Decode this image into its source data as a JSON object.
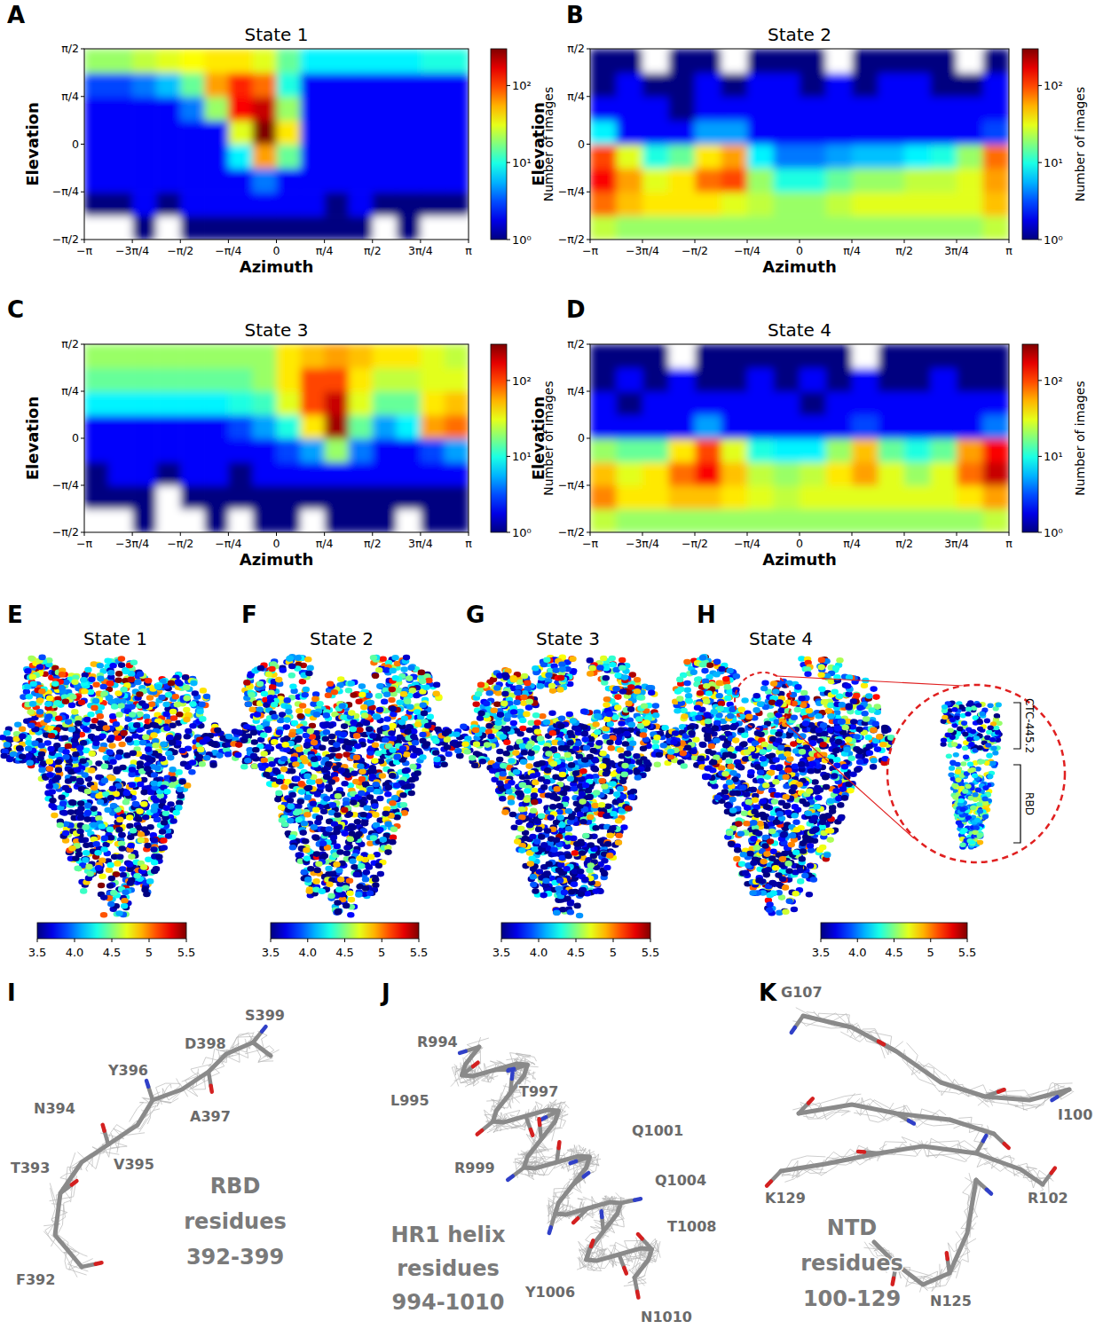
{
  "chart_data": [
    {
      "type": "heatmap",
      "panel": "A",
      "title": "State 1",
      "x_label": "Azimuth",
      "y_label": "Elevation",
      "xlim": [
        -3.1416,
        3.1416
      ],
      "ylim": [
        -1.5708,
        1.5708
      ],
      "xticks": [
        {
          "value": -3.1416,
          "label": "−π"
        },
        {
          "value": -2.3562,
          "label": "−3π/4"
        },
        {
          "value": -1.5708,
          "label": "−π/2"
        },
        {
          "value": -0.7854,
          "label": "−π/4"
        },
        0,
        {
          "value": 0.7854,
          "label": "π/4"
        },
        {
          "value": 1.5708,
          "label": "π/2"
        },
        {
          "value": 2.3562,
          "label": "3π/4"
        },
        {
          "value": 3.1416,
          "label": "π"
        }
      ],
      "yticks": [
        {
          "value": -1.5708,
          "label": "−π/2"
        },
        {
          "value": -0.7854,
          "label": "−π/4"
        },
        0,
        {
          "value": 0.7854,
          "label": "π/4"
        },
        {
          "value": 1.5708,
          "label": "π/2"
        }
      ],
      "x_edges": [
        -3.1416,
        -2.7489,
        -2.3562,
        -1.9635,
        -1.5708,
        -1.1781,
        -0.7854,
        -0.3927,
        0,
        0.3927,
        0.7854,
        1.1781,
        1.5708,
        1.9635,
        2.3562,
        2.7489,
        3.1416
      ],
      "y_edges": [
        -1.5708,
        -1.1781,
        -0.7854,
        -0.3927,
        0,
        0.3927,
        0.7854,
        1.1781,
        1.5708
      ],
      "cells": [
        [
          0,
          0,
          1,
          0,
          1,
          1,
          1,
          1,
          1,
          1,
          1,
          1,
          0,
          1,
          0,
          0
        ],
        [
          1,
          1,
          2,
          1,
          2,
          2,
          2,
          2,
          2,
          2,
          1,
          2,
          1,
          1,
          1,
          1
        ],
        [
          2,
          2,
          2,
          2,
          2,
          2,
          2,
          4,
          2,
          2,
          2,
          2,
          2,
          2,
          2,
          2
        ],
        [
          2,
          2,
          2,
          2,
          2,
          2,
          8,
          60,
          15,
          2,
          2,
          2,
          2,
          2,
          2,
          2
        ],
        [
          2,
          2,
          2,
          2,
          2,
          2,
          30,
          300,
          40,
          2,
          2,
          2,
          2,
          2,
          2,
          2
        ],
        [
          2,
          2,
          2,
          2,
          4,
          20,
          150,
          200,
          20,
          2,
          2,
          2,
          2,
          2,
          2,
          2
        ],
        [
          3,
          3,
          4,
          6,
          15,
          60,
          120,
          80,
          10,
          2,
          2,
          2,
          2,
          2,
          2,
          2
        ],
        [
          20,
          20,
          25,
          30,
          35,
          40,
          40,
          30,
          15,
          8,
          8,
          8,
          8,
          8,
          10,
          10
        ]
      ],
      "colorbar": {
        "label": "Number of images",
        "log": true,
        "range": [
          1,
          300
        ],
        "ticks": [
          {
            "value": 1,
            "label": "10⁰"
          },
          {
            "value": 10,
            "label": "10¹"
          },
          {
            "value": 100,
            "label": "10²"
          }
        ]
      }
    },
    {
      "type": "heatmap",
      "panel": "B",
      "title": "State 2",
      "x_label": "Azimuth",
      "y_label": "Elevation",
      "xlim": [
        -3.1416,
        3.1416
      ],
      "ylim": [
        -1.5708,
        1.5708
      ],
      "xticks": [
        {
          "value": -3.1416,
          "label": "−π"
        },
        {
          "value": -2.3562,
          "label": "−3π/4"
        },
        {
          "value": -1.5708,
          "label": "−π/2"
        },
        {
          "value": -0.7854,
          "label": "−π/4"
        },
        0,
        {
          "value": 0.7854,
          "label": "π/4"
        },
        {
          "value": 1.5708,
          "label": "π/2"
        },
        {
          "value": 2.3562,
          "label": "3π/4"
        },
        {
          "value": 3.1416,
          "label": "π"
        }
      ],
      "yticks": [
        {
          "value": -1.5708,
          "label": "−π/2"
        },
        {
          "value": -0.7854,
          "label": "−π/4"
        },
        0,
        {
          "value": 0.7854,
          "label": "π/4"
        },
        {
          "value": 1.5708,
          "label": "π/2"
        }
      ],
      "x_edges": [
        -3.1416,
        -2.7489,
        -2.3562,
        -1.9635,
        -1.5708,
        -1.1781,
        -0.7854,
        -0.3927,
        0,
        0.3927,
        0.7854,
        1.1781,
        1.5708,
        1.9635,
        2.3562,
        2.7489,
        3.1416
      ],
      "y_edges": [
        -1.5708,
        -1.1781,
        -0.7854,
        -0.3927,
        0,
        0.3927,
        0.7854,
        1.1781,
        1.5708
      ],
      "cells": [
        [
          25,
          20,
          20,
          20,
          20,
          20,
          20,
          20,
          20,
          20,
          20,
          20,
          20,
          20,
          20,
          25
        ],
        [
          80,
          50,
          40,
          40,
          40,
          30,
          25,
          20,
          20,
          25,
          30,
          30,
          30,
          30,
          30,
          50
        ],
        [
          150,
          60,
          30,
          40,
          80,
          100,
          20,
          10,
          10,
          15,
          20,
          20,
          25,
          25,
          30,
          60
        ],
        [
          100,
          30,
          10,
          15,
          40,
          60,
          8,
          4,
          4,
          5,
          6,
          6,
          8,
          10,
          20,
          80
        ],
        [
          8,
          2,
          2,
          2,
          5,
          5,
          2,
          2,
          2,
          2,
          2,
          2,
          2,
          2,
          2,
          3
        ],
        [
          2,
          2,
          2,
          1,
          2,
          2,
          2,
          2,
          2,
          2,
          2,
          2,
          2,
          2,
          2,
          2
        ],
        [
          1,
          2,
          1,
          1,
          2,
          1,
          2,
          2,
          1,
          2,
          1,
          2,
          2,
          1,
          1,
          2
        ],
        [
          1,
          1,
          0,
          1,
          1,
          0,
          1,
          1,
          1,
          0,
          1,
          1,
          1,
          1,
          0,
          1
        ]
      ],
      "colorbar": {
        "label": "Number of images",
        "log": true,
        "range": [
          1,
          300
        ],
        "ticks": [
          {
            "value": 1,
            "label": "10⁰"
          },
          {
            "value": 10,
            "label": "10¹"
          },
          {
            "value": 100,
            "label": "10²"
          }
        ]
      }
    },
    {
      "type": "heatmap",
      "panel": "C",
      "title": "State 3",
      "x_label": "Azimuth",
      "y_label": "Elevation",
      "xlim": [
        -3.1416,
        3.1416
      ],
      "ylim": [
        -1.5708,
        1.5708
      ],
      "xticks": [
        {
          "value": -3.1416,
          "label": "−π"
        },
        {
          "value": -2.3562,
          "label": "−3π/4"
        },
        {
          "value": -1.5708,
          "label": "−π/2"
        },
        {
          "value": -0.7854,
          "label": "−π/4"
        },
        0,
        {
          "value": 0.7854,
          "label": "π/4"
        },
        {
          "value": 1.5708,
          "label": "π/2"
        },
        {
          "value": 2.3562,
          "label": "3π/4"
        },
        {
          "value": 3.1416,
          "label": "π"
        }
      ],
      "yticks": [
        {
          "value": -1.5708,
          "label": "−π/2"
        },
        {
          "value": -0.7854,
          "label": "−π/4"
        },
        0,
        {
          "value": 0.7854,
          "label": "π/4"
        },
        {
          "value": 1.5708,
          "label": "π/2"
        }
      ],
      "x_edges": [
        -3.1416,
        -2.7489,
        -2.3562,
        -1.9635,
        -1.5708,
        -1.1781,
        -0.7854,
        -0.3927,
        0,
        0.3927,
        0.7854,
        1.1781,
        1.5708,
        1.9635,
        2.3562,
        2.7489,
        3.1416
      ],
      "y_edges": [
        -1.5708,
        -1.1781,
        -0.7854,
        -0.3927,
        0,
        0.3927,
        0.7854,
        1.1781,
        1.5708
      ],
      "cells": [
        [
          0,
          0,
          1,
          0,
          0,
          1,
          0,
          1,
          1,
          0,
          1,
          1,
          1,
          0,
          1,
          1
        ],
        [
          1,
          1,
          1,
          0,
          1,
          1,
          1,
          1,
          1,
          1,
          1,
          1,
          1,
          1,
          1,
          1
        ],
        [
          1,
          2,
          2,
          1,
          2,
          2,
          1,
          2,
          2,
          2,
          2,
          2,
          2,
          2,
          2,
          2
        ],
        [
          2,
          2,
          2,
          2,
          2,
          2,
          2,
          2,
          3,
          5,
          20,
          4,
          2,
          2,
          3,
          5
        ],
        [
          2,
          2,
          2,
          2,
          2,
          2,
          3,
          5,
          10,
          40,
          250,
          15,
          5,
          8,
          60,
          80
        ],
        [
          8,
          8,
          8,
          8,
          8,
          8,
          10,
          12,
          30,
          100,
          200,
          30,
          15,
          15,
          40,
          50
        ],
        [
          15,
          15,
          15,
          15,
          15,
          15,
          15,
          20,
          40,
          100,
          100,
          40,
          25,
          25,
          30,
          30
        ],
        [
          20,
          20,
          20,
          20,
          20,
          20,
          20,
          20,
          40,
          50,
          60,
          50,
          40,
          40,
          30,
          25
        ]
      ],
      "colorbar": {
        "label": "Number of images",
        "log": true,
        "range": [
          1,
          300
        ],
        "ticks": [
          {
            "value": 1,
            "label": "10⁰"
          },
          {
            "value": 10,
            "label": "10¹"
          },
          {
            "value": 100,
            "label": "10²"
          }
        ]
      }
    },
    {
      "type": "heatmap",
      "panel": "D",
      "title": "State 4",
      "x_label": "Azimuth",
      "y_label": "Elevation",
      "xlim": [
        -3.1416,
        3.1416
      ],
      "ylim": [
        -1.5708,
        1.5708
      ],
      "xticks": [
        {
          "value": -3.1416,
          "label": "−π"
        },
        {
          "value": -2.3562,
          "label": "−3π/4"
        },
        {
          "value": -1.5708,
          "label": "−π/2"
        },
        {
          "value": -0.7854,
          "label": "−π/4"
        },
        0,
        {
          "value": 0.7854,
          "label": "π/4"
        },
        {
          "value": 1.5708,
          "label": "π/2"
        },
        {
          "value": 2.3562,
          "label": "3π/4"
        },
        {
          "value": 3.1416,
          "label": "π"
        }
      ],
      "yticks": [
        {
          "value": -1.5708,
          "label": "−π/2"
        },
        {
          "value": -0.7854,
          "label": "−π/4"
        },
        0,
        {
          "value": 0.7854,
          "label": "π/4"
        },
        {
          "value": 1.5708,
          "label": "π/2"
        }
      ],
      "x_edges": [
        -3.1416,
        -2.7489,
        -2.3562,
        -1.9635,
        -1.5708,
        -1.1781,
        -0.7854,
        -0.3927,
        0,
        0.3927,
        0.7854,
        1.1781,
        1.5708,
        1.9635,
        2.3562,
        2.7489,
        3.1416
      ],
      "y_edges": [
        -1.5708,
        -1.1781,
        -0.7854,
        -0.3927,
        0,
        0.3927,
        0.7854,
        1.1781,
        1.5708
      ],
      "cells": [
        [
          25,
          20,
          20,
          20,
          20,
          20,
          20,
          20,
          20,
          20,
          20,
          20,
          20,
          20,
          20,
          25
        ],
        [
          70,
          40,
          40,
          50,
          50,
          40,
          30,
          25,
          30,
          30,
          30,
          30,
          30,
          30,
          40,
          60
        ],
        [
          50,
          30,
          40,
          80,
          150,
          50,
          25,
          20,
          25,
          40,
          60,
          30,
          20,
          30,
          80,
          200
        ],
        [
          20,
          15,
          15,
          40,
          100,
          30,
          10,
          8,
          8,
          20,
          50,
          15,
          10,
          15,
          60,
          150
        ],
        [
          2,
          2,
          2,
          2,
          5,
          2,
          2,
          2,
          2,
          2,
          3,
          2,
          2,
          2,
          2,
          4
        ],
        [
          2,
          1,
          2,
          2,
          2,
          2,
          2,
          2,
          1,
          2,
          2,
          2,
          2,
          2,
          2,
          2
        ],
        [
          1,
          2,
          1,
          2,
          1,
          1,
          2,
          1,
          2,
          1,
          2,
          1,
          1,
          2,
          1,
          1
        ],
        [
          1,
          1,
          1,
          0,
          1,
          1,
          1,
          1,
          1,
          1,
          0,
          1,
          1,
          1,
          1,
          1
        ]
      ],
      "colorbar": {
        "label": "Number of images",
        "log": true,
        "range": [
          1,
          300
        ],
        "ticks": [
          {
            "value": 1,
            "label": "10⁰"
          },
          {
            "value": 10,
            "label": "10¹"
          },
          {
            "value": 100,
            "label": "10²"
          }
        ]
      }
    }
  ],
  "density_maps": [
    {
      "panel": "E",
      "title": "State 1",
      "colorbar": {
        "range": [
          3.5,
          5.5
        ],
        "ticks": [
          3.5,
          {
            "value": 4,
            "label": "4.0"
          },
          4.5,
          5,
          5.5
        ]
      }
    },
    {
      "panel": "F",
      "title": "State 2",
      "colorbar": {
        "range": [
          3.5,
          5.5
        ],
        "ticks": [
          3.5,
          {
            "value": 4,
            "label": "4.0"
          },
          4.5,
          5,
          5.5
        ]
      }
    },
    {
      "panel": "G",
      "title": "State 3",
      "colorbar": {
        "range": [
          3.5,
          5.5
        ],
        "ticks": [
          3.5,
          {
            "value": 4,
            "label": "4.0"
          },
          4.5,
          5,
          5.5
        ]
      }
    },
    {
      "panel": "H",
      "title": "State 4",
      "colorbar": {
        "range": [
          3.5,
          5.5
        ],
        "ticks": [
          3.5,
          {
            "value": 4,
            "label": "4.0"
          },
          4.5,
          5,
          5.5
        ]
      },
      "inset_labels": [
        "CTC-445.2",
        "RBD"
      ]
    }
  ],
  "models": [
    {
      "panel": "I",
      "residue_labels": [
        "F392",
        "T393",
        "N394",
        "V395",
        "Y396",
        "A397",
        "D398",
        "S399"
      ],
      "caption": [
        "RBD",
        "residues",
        "392-399"
      ]
    },
    {
      "panel": "J",
      "residue_labels": [
        "R994",
        "T997",
        "L995",
        "Q1001",
        "R999",
        "Q1004",
        "T1008",
        "Y1006",
        "N1010"
      ],
      "caption": [
        "HR1 helix",
        "residues",
        "994-1010"
      ]
    },
    {
      "panel": "K",
      "residue_labels": [
        "G107",
        "I100",
        "K129",
        "R102",
        "N125"
      ],
      "caption": [
        "NTD",
        "residues",
        "100-129"
      ]
    }
  ]
}
